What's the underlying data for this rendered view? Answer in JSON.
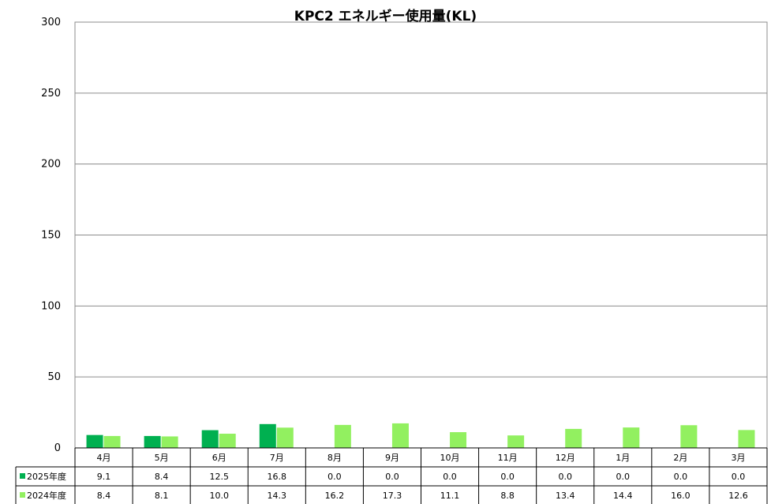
{
  "chart_data": {
    "type": "bar",
    "title": "KPC2 エネルギー使用量(KL)",
    "categories": [
      "4月",
      "5月",
      "6月",
      "7月",
      "8月",
      "9月",
      "10月",
      "11月",
      "12月",
      "1月",
      "2月",
      "3月"
    ],
    "series": [
      {
        "name": "2025年度",
        "color": "#00b050",
        "values": [
          9.1,
          8.4,
          12.5,
          16.8,
          0.0,
          0.0,
          0.0,
          0.0,
          0.0,
          0.0,
          0.0,
          0.0
        ],
        "labels": [
          "9.1",
          "8.4",
          "12.5",
          "16.8",
          "0.0",
          "0.0",
          "0.0",
          "0.0",
          "0.0",
          "0.0",
          "0.0",
          "0.0"
        ]
      },
      {
        "name": "2024年度",
        "color": "#92f060",
        "values": [
          8.4,
          8.1,
          10.0,
          14.3,
          16.2,
          17.3,
          11.1,
          8.8,
          13.4,
          14.4,
          16.0,
          12.6
        ],
        "labels": [
          "8.4",
          "8.1",
          "10.0",
          "14.3",
          "16.2",
          "17.3",
          "11.1",
          "8.8",
          "13.4",
          "14.4",
          "16.0",
          "12.6"
        ]
      }
    ],
    "ylim": [
      0,
      300
    ],
    "yticks": [
      "0",
      "50",
      "100",
      "150",
      "200",
      "250",
      "300"
    ],
    "grid": true,
    "legend": "data-table-bottom"
  }
}
